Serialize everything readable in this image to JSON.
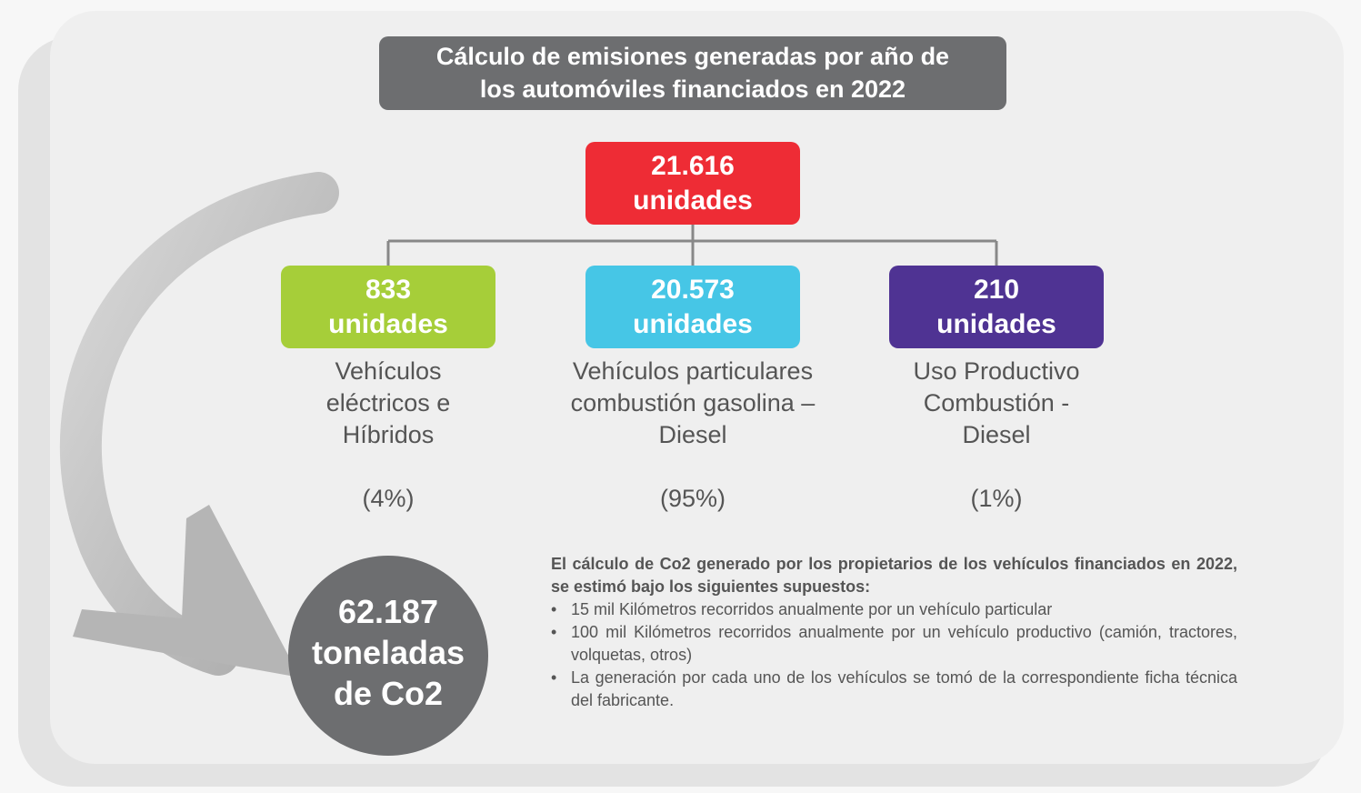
{
  "title": {
    "lines": [
      "Cálculo de emisiones generadas por año de",
      "los automóviles financiados en 2022"
    ]
  },
  "total": {
    "value": "21.616",
    "unit": "unidades"
  },
  "groups": [
    {
      "value": "833",
      "unit": "unidades",
      "description": [
        "Vehículos",
        "eléctricos e",
        "Híbridos"
      ],
      "share": "(4%)"
    },
    {
      "value": "20.573",
      "unit": "unidades",
      "description": [
        "Vehículos particulares",
        "combustión gasolina –",
        "Diesel"
      ],
      "share": "(95%)"
    },
    {
      "value": "210",
      "unit": "unidades",
      "description": [
        "Uso Productivo",
        "Combustión -",
        "Diesel"
      ],
      "share": "(1%)"
    }
  ],
  "result": {
    "lines": [
      "62.187",
      "toneladas",
      "de Co2"
    ]
  },
  "notes": {
    "heading": "El cálculo de Co2 generado por los propietarios de los vehículos financiados en 2022, se estimó bajo los siguientes supuestos:",
    "bullets": [
      "15 mil Kilómetros recorridos anualmente por un vehículo particular",
      "100 mil Kilómetros recorridos anualmente por un vehículo productivo (camión, tractores, volquetas, otros)",
      "La generación por cada uno de los vehículos se tomó de la correspondiente ficha técnica del fabricante."
    ]
  }
}
